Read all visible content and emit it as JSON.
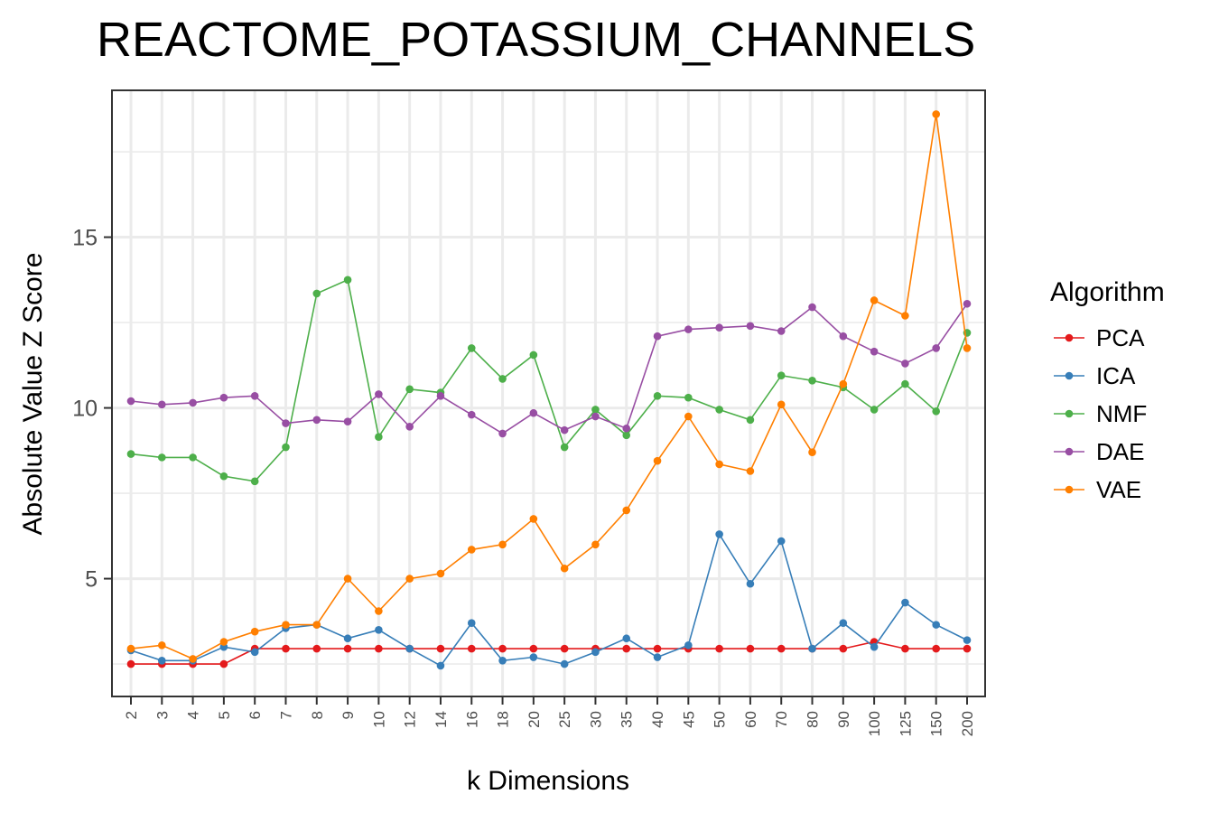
{
  "chart_data": {
    "type": "line",
    "title": "REACTOME_POTASSIUM_CHANNELS",
    "xlabel": "k Dimensions",
    "ylabel": "Absolute Value Z Score",
    "categories": [
      "2",
      "3",
      "4",
      "5",
      "6",
      "7",
      "8",
      "9",
      "10",
      "12",
      "14",
      "16",
      "18",
      "20",
      "25",
      "30",
      "35",
      "40",
      "45",
      "50",
      "60",
      "70",
      "80",
      "90",
      "100",
      "125",
      "150",
      "200"
    ],
    "yticks": [
      5,
      10,
      15
    ],
    "ylim": [
      1.55,
      19.3
    ],
    "grid": true,
    "legend_position": "right",
    "legend_title": "Algorithm",
    "series": [
      {
        "name": "PCA",
        "color": "#E41A1C",
        "values": [
          2.5,
          2.5,
          2.5,
          2.5,
          2.95,
          2.95,
          2.95,
          2.95,
          2.95,
          2.95,
          2.95,
          2.95,
          2.95,
          2.95,
          2.95,
          2.95,
          2.95,
          2.95,
          2.95,
          2.95,
          2.95,
          2.95,
          2.95,
          2.95,
          3.15,
          2.95,
          2.95,
          2.95
        ]
      },
      {
        "name": "ICA",
        "color": "#377EB8",
        "values": [
          2.9,
          2.6,
          2.6,
          3.0,
          2.85,
          3.55,
          3.65,
          3.25,
          3.5,
          2.95,
          2.45,
          3.7,
          2.6,
          2.7,
          2.5,
          2.85,
          3.25,
          2.7,
          3.05,
          6.3,
          4.85,
          6.1,
          2.95,
          3.7,
          3.0,
          4.3,
          3.65,
          3.2
        ]
      },
      {
        "name": "NMF",
        "color": "#4DAF4A",
        "values": [
          8.65,
          8.55,
          8.55,
          8.0,
          7.85,
          8.85,
          13.35,
          13.75,
          9.15,
          10.55,
          10.45,
          11.75,
          10.85,
          11.55,
          8.85,
          9.95,
          9.2,
          10.35,
          10.3,
          9.95,
          9.65,
          10.95,
          10.8,
          10.6,
          9.95,
          10.7,
          9.9,
          12.2
        ]
      },
      {
        "name": "DAE",
        "color": "#984EA3",
        "values": [
          10.2,
          10.1,
          10.15,
          10.3,
          10.35,
          9.55,
          9.65,
          9.6,
          10.4,
          9.45,
          10.35,
          9.8,
          9.25,
          9.85,
          9.35,
          9.75,
          9.4,
          12.1,
          12.3,
          12.35,
          12.4,
          12.25,
          12.95,
          12.1,
          11.65,
          11.3,
          11.75,
          13.05
        ]
      },
      {
        "name": "VAE",
        "color": "#FF7F00",
        "values": [
          2.95,
          3.05,
          2.65,
          3.15,
          3.45,
          3.65,
          3.65,
          5.0,
          4.05,
          5.0,
          5.15,
          5.85,
          6.0,
          6.75,
          5.3,
          6.0,
          7.0,
          8.45,
          9.75,
          8.35,
          8.15,
          10.1,
          8.7,
          10.7,
          13.15,
          12.7,
          18.6,
          11.75
        ]
      }
    ]
  }
}
